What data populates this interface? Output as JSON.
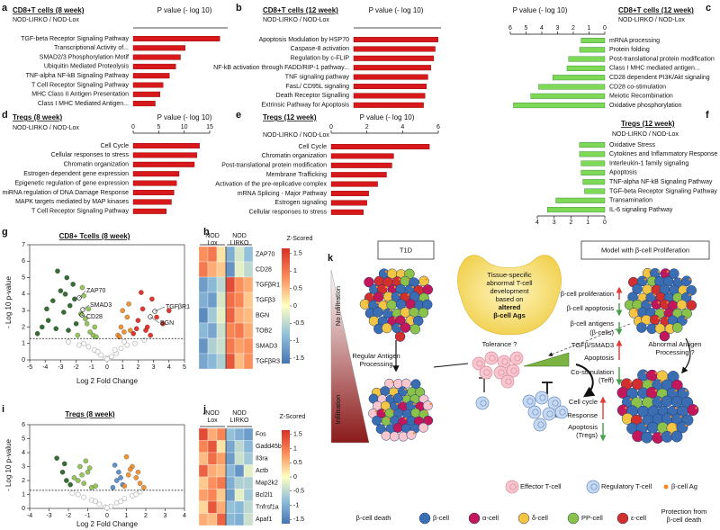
{
  "chart_data": [
    {
      "panel": "a",
      "type": "bar",
      "orientation": "horizontal",
      "title": "CD8+T cells (8 week)",
      "subtitle": "NOD-LIRKO / NOD-Lox",
      "x_label": "P value (- log 10)",
      "categories": [
        "TGF-beta Receptor Signaling Pathway",
        "Transcriptional Activity of...",
        "SMAD2/3 Phosphorylation Motif",
        "Ubiquitin Mediated Proteolysis",
        "TNF-alpha NF-kB Signaling Pathway",
        "T Cell Receptor Signaling Pathway",
        "MHC Class II Antigen Presentation",
        "Class I MHC Mediated Antigen..."
      ],
      "values": [
        5.5,
        3.3,
        3.0,
        2.7,
        2.3,
        1.9,
        1.7,
        1.4
      ],
      "color": "#d7191c",
      "xlim": [
        0,
        6
      ],
      "x_reversed": false
    },
    {
      "panel": "b",
      "type": "bar",
      "orientation": "horizontal",
      "title": "CD8+T cells (12 week)",
      "subtitle": "NOD-LIRKO / NOD-Lox",
      "x_label": "P value (- log 10)",
      "categories": [
        "Apoptosis Modulation by HSP70",
        "Caspase-8 activation",
        "Regulation by c-FLIP",
        "NF-kB activation through FADD/RIP-1 pathway...",
        "TNF signaling pathway",
        "FasL/ CD95L signaling",
        "Death Receptor Signalling",
        "Extrinsic Pathway for Apoptosis"
      ],
      "values": [
        5.8,
        5.6,
        5.5,
        5.3,
        5.1,
        5.0,
        4.9,
        4.8
      ],
      "color": "#d7191c",
      "xlim": [
        0,
        6
      ],
      "x_reversed": false
    },
    {
      "panel": "c",
      "type": "bar",
      "orientation": "horizontal",
      "title": "CD8+T cells (12 week)",
      "subtitle": "NOD-LIRKO / NOD-Lox",
      "x_label": "P value (- log 10)",
      "categories": [
        "mRNA processing",
        "Protein folding",
        "Post-translational protein modification",
        "Class I MHC mediated antigen...",
        "CD28 dependent PI3K/Akt signaling",
        "CD28 co-stimulation",
        "Meiotic Recombination",
        "Oxidative phosphorylation"
      ],
      "values": [
        1.5,
        1.6,
        2.3,
        2.4,
        3.3,
        4.2,
        4.7,
        5.8
      ],
      "color": "#7ed957",
      "xlim": [
        0,
        6
      ],
      "xticks": [
        6,
        5,
        4,
        3,
        2,
        1,
        0
      ],
      "x_reversed": true
    },
    {
      "panel": "d",
      "type": "bar",
      "orientation": "horizontal",
      "title": "Tregs (8 week)",
      "subtitle": "NOD-LIRKO / NOD-Lox",
      "x_label": "P value (- log 10)",
      "categories": [
        "Cell Cycle",
        "Cellular responses to stress",
        "Chromatin organization",
        "Estrogen-dependent gene expression",
        "Epigenetic regulation of gene expression",
        "miRNA regulation of DNA Damage Response",
        "MAPK targets mediated by MAP kinases",
        "T Cell Receptor Signaling Pathway"
      ],
      "values": [
        13,
        12.5,
        12,
        9,
        8.5,
        8,
        7.5,
        6.5
      ],
      "color": "#d7191c",
      "xlim": [
        0,
        15
      ],
      "xticks": [
        0,
        5,
        10,
        15
      ],
      "x_reversed": false
    },
    {
      "panel": "e",
      "type": "bar",
      "orientation": "horizontal",
      "title": "Tregs (12 week)",
      "subtitle": "NOD-LIRKO / NOD-Lox",
      "x_label": "P value (- log 10)",
      "categories": [
        "Cell Cycle",
        "Chromatin organization",
        "Post-translational protein modification",
        "Membrane Trafficking",
        "Activation of the pre-replicative complex",
        "mRNA Splicing - Major Pathway",
        "Estrogen signaling",
        "Cellular responses to stress"
      ],
      "values": [
        5.5,
        3.5,
        3.4,
        3.1,
        2.6,
        2.1,
        2.0,
        1.8
      ],
      "color": "#d7191c",
      "xlim": [
        0,
        6
      ],
      "xticks": [
        0,
        2,
        4,
        6
      ],
      "x_reversed": false
    },
    {
      "panel": "f",
      "type": "bar",
      "orientation": "horizontal",
      "title": "Tregs  (12 week)",
      "subtitle": "NOD-LIRKO / NOD-Lox",
      "categories": [
        "Oxidative Stress",
        "Cytokines and Inflammatory Response",
        "Interleukin-1 family signaling",
        "Apoptosis",
        "TNF-alpha NF-kB Signaling Pathway",
        "TGF-beta Receptor Signaling Pathway",
        "Transamination",
        "IL-6 signaling Pathway"
      ],
      "values": [
        1.5,
        1.5,
        1.4,
        1.4,
        1.3,
        1.2,
        2.9,
        3.4
      ],
      "color": "#7ed957",
      "xlim": [
        0,
        4
      ],
      "xticks": [
        4,
        3,
        2,
        1,
        0
      ],
      "x_reversed": true
    },
    {
      "panel": "g",
      "type": "scatter",
      "title": "CD8+ Tcells (8 week)",
      "x_label": "Log 2 Fold Change",
      "y_label": "- Log 10 p-value",
      "xlim": [
        -5,
        5
      ],
      "ylim": [
        0,
        7
      ],
      "xticks": [
        -5,
        -4,
        -3,
        -2,
        -1,
        0,
        1,
        2,
        3,
        4,
        5
      ],
      "yticks": [
        0,
        1,
        2,
        3,
        4,
        5,
        6,
        7
      ],
      "threshold": 1.3,
      "series": [
        {
          "color": "#b5b5b5",
          "hollow": true,
          "x": [
            -2.5,
            -1.8,
            -1.2,
            -0.8,
            -0.4,
            -0.1,
            0.1,
            0.3,
            0.6,
            0.9,
            1.3,
            1.8,
            2.4,
            -0.6,
            0.5,
            0,
            -1.5,
            1.1
          ],
          "y": [
            1.1,
            0.9,
            0.8,
            0.6,
            0.3,
            0.1,
            0.1,
            0.2,
            0.4,
            0.7,
            0.9,
            1.0,
            1.2,
            0.5,
            0.6,
            0.05,
            1.0,
            1.1
          ]
        },
        {
          "color": "#1f5d1f",
          "hollow": false,
          "x": [
            -4.5,
            -3.8,
            -3.5,
            -3.2,
            -3.0,
            -2.8,
            -2.6,
            -2.4,
            -2.2,
            -2.0,
            -3.3,
            -2.7,
            -2.5,
            -3.9,
            -2.1,
            -4.2
          ],
          "y": [
            1.6,
            2.4,
            3.6,
            5.4,
            4.2,
            2.9,
            5.0,
            3.3,
            4.6,
            2.2,
            1.9,
            4.0,
            1.8,
            3.1,
            3.7,
            2.0
          ]
        },
        {
          "color": "#8bbf4a",
          "hollow": false,
          "x": [
            -1.9,
            -1.7,
            -1.5,
            -1.3,
            -1.1,
            -0.9,
            -0.7,
            -1.6,
            -1.2,
            -0.8,
            -1.4
          ],
          "y": [
            1.5,
            2.8,
            3.9,
            2.2,
            1.7,
            1.5,
            1.4,
            4.4,
            3.1,
            2.0,
            2.5
          ]
        },
        {
          "color": "#f08a24",
          "hollow": false,
          "x": [
            0.7,
            0.9,
            1.1,
            1.3,
            1.5,
            1.0,
            1.4,
            0.8
          ],
          "y": [
            1.5,
            2.0,
            1.7,
            2.6,
            1.8,
            3.0,
            3.4,
            1.4
          ]
        },
        {
          "color": "#e0201b",
          "hollow": false,
          "x": [
            1.7,
            2.0,
            2.3,
            2.6,
            2.9,
            3.2,
            3.6,
            2.2,
            1.9,
            2.8,
            4.0,
            2.5
          ],
          "y": [
            1.6,
            2.4,
            3.1,
            2.0,
            3.7,
            2.6,
            2.2,
            4.1,
            1.9,
            1.5,
            3.0,
            1.8
          ]
        }
      ],
      "annotations": [
        "ZAP70",
        "SMAD3",
        "CD28",
        "TGFβR1",
        "BGN"
      ]
    },
    {
      "panel": "h",
      "type": "heatmap",
      "title": "Z-Scored",
      "column_groups": [
        [
          "NOD",
          "Lox"
        ],
        [
          "NOD",
          "LIRKO"
        ]
      ],
      "rows": [
        "ZAP70",
        "CD28",
        "TGFβR1",
        "TGFβ3",
        "BGN",
        "TOB2",
        "SMAD3",
        "TGFβR3"
      ],
      "values": [
        [
          0.8,
          1.0,
          0.2,
          -1.0,
          -0.3,
          -0.8
        ],
        [
          1.0,
          0.6,
          0.4,
          -1.3,
          -0.2,
          -0.5
        ],
        [
          -1.2,
          -0.9,
          -0.5,
          1.4,
          0.8,
          0.6
        ],
        [
          -1.0,
          -1.2,
          -0.3,
          1.1,
          0.9,
          0.4
        ],
        [
          -1.4,
          -0.7,
          -0.2,
          1.2,
          0.6,
          0.5
        ],
        [
          -0.9,
          -1.1,
          -0.4,
          0.9,
          1.0,
          0.6
        ],
        [
          -1.3,
          -0.6,
          -0.4,
          1.0,
          0.7,
          0.8
        ],
        [
          -1.1,
          -0.9,
          -0.6,
          1.3,
          0.5,
          0.8
        ]
      ],
      "zlim": [
        -1.65,
        1.65
      ],
      "zticks": [
        1.5,
        1,
        0.5,
        0,
        -0.5,
        -1,
        -1.5
      ]
    },
    {
      "panel": "i",
      "type": "scatter",
      "title": "Tregs (8 week)",
      "x_label": "Log 2 Fold Change",
      "y_label": "- Log 10 p-value",
      "xlim": [
        -4,
        4
      ],
      "ylim": [
        0,
        6
      ],
      "xticks": [
        -4,
        -3,
        -2,
        -1,
        0,
        1,
        2,
        3,
        4
      ],
      "yticks": [
        0,
        1,
        2,
        3,
        4,
        5,
        6
      ],
      "threshold": 1.3,
      "series": [
        {
          "color": "#b5b5b5",
          "hollow": true,
          "x": [
            -1.8,
            -1.2,
            -0.8,
            -0.4,
            -0.1,
            0.2,
            0.5,
            0.9,
            1.3,
            1.7,
            -0.6,
            0.7,
            0,
            -1.5,
            1.5
          ],
          "y": [
            1.1,
            0.8,
            0.6,
            0.3,
            0.1,
            0.15,
            0.4,
            0.7,
            0.9,
            1.2,
            0.5,
            0.5,
            0.05,
            1.0,
            1.0
          ]
        },
        {
          "color": "#1f5d1f",
          "hollow": false,
          "x": [
            -2.6,
            -2.3,
            -2.1,
            -1.9,
            -2.2
          ],
          "y": [
            3.6,
            2.6,
            2.0,
            1.7,
            3.2
          ]
        },
        {
          "color": "#8bbf4a",
          "hollow": false,
          "x": [
            -1.7,
            -1.4,
            -1.2,
            -1.0,
            -0.8,
            -0.6,
            -1.5,
            -1.1,
            -0.9,
            -1.3
          ],
          "y": [
            2.2,
            3.0,
            1.8,
            2.6,
            1.5,
            1.6,
            2.0,
            3.4,
            2.9,
            2.4
          ]
        },
        {
          "color": "#4f86c6",
          "hollow": false,
          "x": [
            0.3,
            0.5,
            0.6,
            0.8,
            0.4,
            0.7
          ],
          "y": [
            1.5,
            2.0,
            2.6,
            1.7,
            3.1,
            2.2
          ]
        },
        {
          "color": "#f08a24",
          "hollow": false,
          "x": [
            0.9,
            1.1,
            1.3,
            1.5,
            1.7,
            1.0,
            1.2,
            1.6,
            1.9
          ],
          "y": [
            1.6,
            2.4,
            3.0,
            2.2,
            1.8,
            3.7,
            2.8,
            2.6,
            1.5
          ]
        }
      ]
    },
    {
      "panel": "j",
      "type": "heatmap",
      "title": "Z-Scored",
      "column_groups": [
        [
          "NOD",
          "Lox"
        ],
        [
          "NOD",
          "LIRKO"
        ]
      ],
      "rows": [
        "Fos",
        "Gadd45b",
        "Il3ra",
        "Actb",
        "Map2k2",
        "Bcl2l1",
        "Tnfrsf1a",
        "Apaf1"
      ],
      "values": [
        [
          1.4,
          0.6,
          0.9,
          -0.8,
          -1.0,
          -1.2
        ],
        [
          0.9,
          1.3,
          0.2,
          -1.1,
          -0.5,
          -0.9
        ],
        [
          0.5,
          1.1,
          0.7,
          -1.2,
          -0.4,
          -0.7
        ],
        [
          1.2,
          0.6,
          0.5,
          -0.9,
          -1.3,
          -0.2
        ],
        [
          0.4,
          0.8,
          1.0,
          -1.0,
          -0.6,
          -0.6
        ],
        [
          0.7,
          0.9,
          0.4,
          -1.2,
          -0.2,
          -0.7
        ],
        [
          0.3,
          1.3,
          0.6,
          -0.8,
          -0.9,
          -0.5
        ],
        [
          0.6,
          0.5,
          1.2,
          -0.9,
          -1.0,
          -0.4
        ]
      ],
      "zlim": [
        -1.65,
        1.65
      ],
      "zticks": [
        1.5,
        1,
        0.5,
        0,
        -0.5,
        -1,
        -1.5
      ]
    }
  ],
  "diagram": {
    "panel": "k",
    "left_title": "T1D",
    "right_title": "Model with β-cell Proliferation",
    "pancreas_text": [
      "Tissue-specific",
      "abnormal T-cell",
      "development",
      "based on",
      "altered",
      "β-cell Ags"
    ],
    "gradient_top": "No Infiltration",
    "gradient_bottom": "Infiltration",
    "left_path": [
      "Regular Antigen",
      "Processing"
    ],
    "right_path": [
      "Abnormal Antigen",
      "Processing ?"
    ],
    "tolerance": "Tolerance ?",
    "beta_effects": [
      "β-cell proliferation",
      "β-cell apoptosis",
      "β-cell antigens",
      "(β-cells)"
    ],
    "teff_effects": [
      "TGFβ/SMAD3",
      "Apoptosis",
      "Co-stimulation",
      "(Teff)"
    ],
    "treg_effects": [
      "Cell cycle",
      "Stress Response",
      "Apoptosis",
      "(Tregs)"
    ],
    "t_cell_legend": [
      "Effector T-cell",
      "Regulatory T-cell",
      "β-cell Ag"
    ],
    "cell_types": [
      {
        "label": "β-cell",
        "color": "#3b6db3"
      },
      {
        "label": "α-cell",
        "color": "#c2185b"
      },
      {
        "label": "δ-cell",
        "color": "#f4c542"
      },
      {
        "label": "PP-cell",
        "color": "#8bc34a"
      },
      {
        "label": "ε-cell",
        "color": "#d32f2f"
      }
    ],
    "antigen_color": "#f08a24",
    "bottom_left": "β-cell death",
    "bottom_right": [
      "Protection from",
      "β-cell death"
    ]
  }
}
